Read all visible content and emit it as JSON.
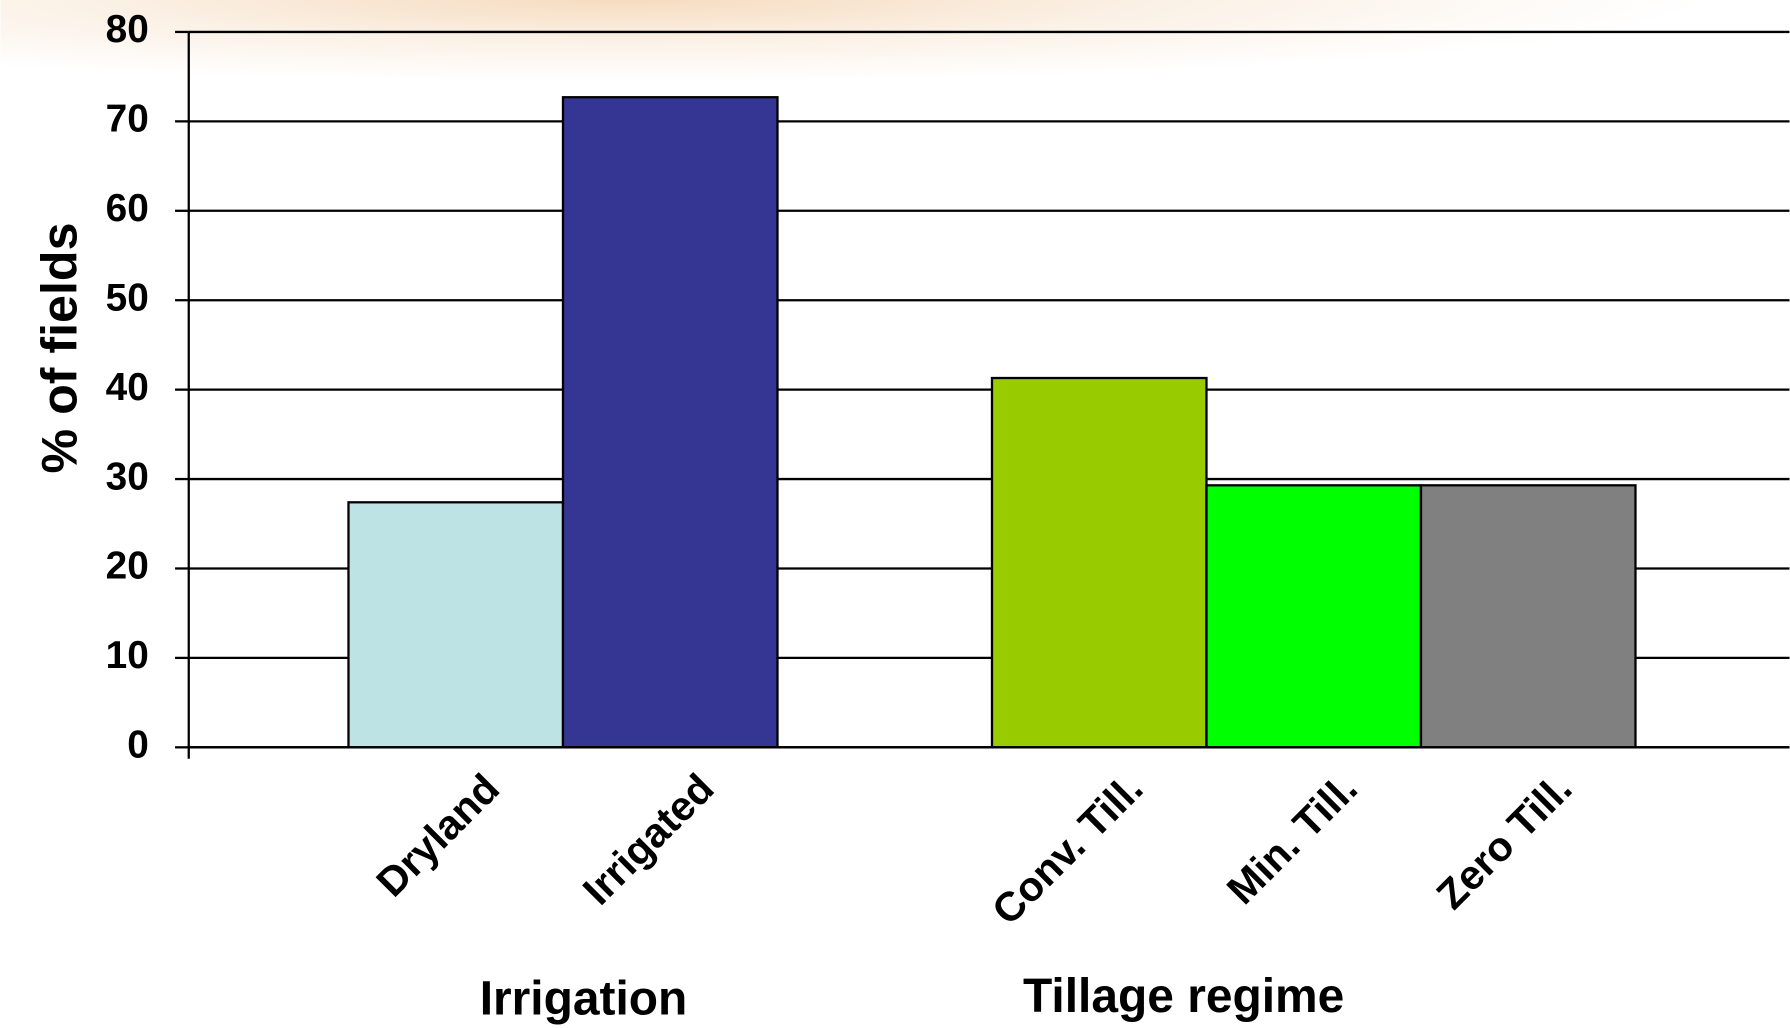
{
  "chart_data": {
    "type": "bar",
    "categories": [
      "Dryland",
      "Irrigated",
      null,
      "Conv. Till.",
      "Min. Till.",
      "Zero Till."
    ],
    "values": [
      27.4,
      72.7,
      null,
      41.3,
      29.3,
      29.3
    ],
    "colors": [
      "#bde3e4",
      "#353594",
      null,
      "#99cc00",
      "#00ff00",
      "#808080"
    ],
    "y_label": "% of fields",
    "groups": [
      {
        "label": "Irrigation"
      },
      {
        "label": "Tillage regime"
      }
    ],
    "ylim": [
      0,
      80
    ],
    "yticks": [
      0,
      10,
      20,
      30,
      40,
      50,
      60,
      70,
      80
    ],
    "grid": true
  }
}
